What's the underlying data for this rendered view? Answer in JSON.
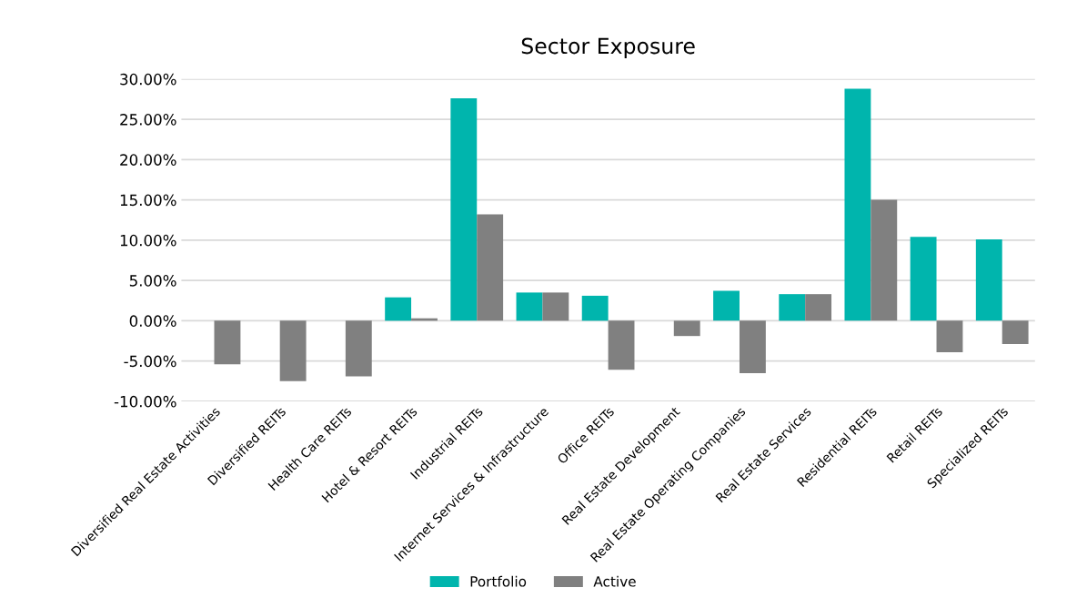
{
  "chart_data": {
    "type": "bar",
    "title": "Sector Exposure",
    "categories": [
      "Diversified Real Estate Activities",
      "Diversified REITs",
      "Health Care REITs",
      "Hotel & Resort REITs",
      "Industrial REITs",
      "Internet Services & Infrastructure",
      "Office REITs",
      "Real Estate Development",
      "Real Estate Operating Companies",
      "Real Estate Services",
      "Residential REITs",
      "Retail REITs",
      "Specialized REITs"
    ],
    "series": [
      {
        "name": "Portfolio",
        "color": "#00b5ad",
        "values": [
          0,
          0,
          0,
          2.9,
          27.6,
          3.5,
          3.1,
          0,
          3.7,
          3.3,
          28.8,
          10.4,
          10.1
        ]
      },
      {
        "name": "Active",
        "color": "#808080",
        "values": [
          -5.4,
          -7.5,
          -6.9,
          0.3,
          13.2,
          3.5,
          -6.1,
          -1.9,
          -6.5,
          3.3,
          15.0,
          -3.9,
          -2.9
        ]
      }
    ],
    "ylim": [
      -10,
      30
    ],
    "yticks": [
      {
        "value": -10,
        "label": "-10.00%"
      },
      {
        "value": -5,
        "label": "-5.00%"
      },
      {
        "value": 0,
        "label": "0.00%"
      },
      {
        "value": 5,
        "label": "5.00%"
      },
      {
        "value": 10,
        "label": "10.00%"
      },
      {
        "value": 15,
        "label": "15.00%"
      },
      {
        "value": 20,
        "label": "20.00%"
      },
      {
        "value": 25,
        "label": "25.00%"
      },
      {
        "value": 30,
        "label": "30.00%"
      }
    ],
    "grid": "y",
    "legend": "bottom"
  }
}
